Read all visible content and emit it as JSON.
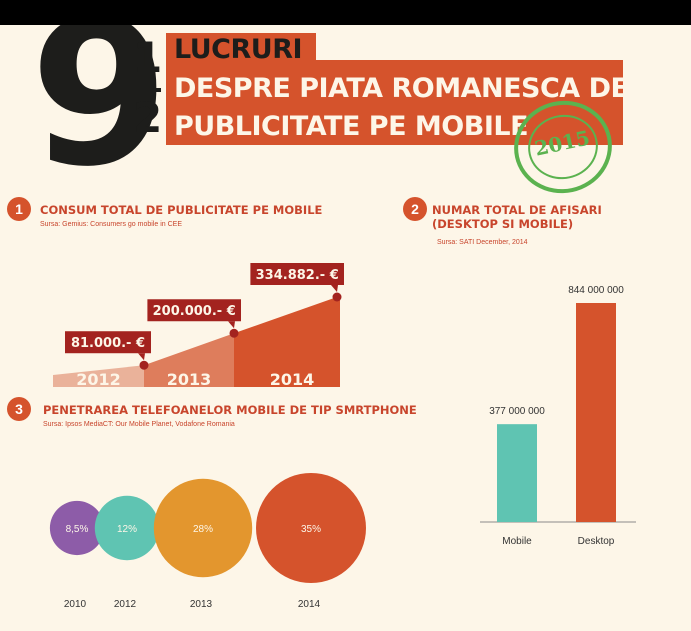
{
  "header": {
    "nine": "9",
    "frac_top": "1",
    "frac_bottom": "2",
    "line1": "LUCRURI",
    "line2": "DESPRE PIATA ROMANESCA DE",
    "line3": "PUBLICITATE PE MOBILE",
    "stamp": "2015"
  },
  "sections": [
    {
      "number": "1",
      "title": "CONSUM TOTAL DE PUBLICITATE PE MOBILE",
      "source": "Sursa: Gemius: Consumers go mobile in CEE"
    },
    {
      "number": "2",
      "title_line1": "NUMAR TOTAL DE AFISARI",
      "title_line2": "(DESKTOP SI MOBILE)",
      "source": "Sursa: SATI December, 2014"
    },
    {
      "number": "3",
      "title": "PENETRAREA TELEFOANELOR MOBILE DE TIP SMRTPHONE",
      "source": "Sursa: Ipsos MediaCT: Our Mobile Planet, Vodafone Romania"
    }
  ],
  "colors": {
    "accent": "#d5532c",
    "dark": "#1d1d1b",
    "teal": "#5fc4b2",
    "purple": "#8d5ca8",
    "orange": "#e3962e",
    "stamp_green": "#5bb24f",
    "label_red": "#a3231f"
  },
  "chart_data": [
    {
      "type": "area",
      "categories": [
        "2012",
        "2013",
        "2014"
      ],
      "values": [
        81000,
        200000,
        334882
      ],
      "value_labels": [
        "81.000.- €",
        "200.000.- €",
        "334.882.- €"
      ],
      "fill_colors": [
        "#eab29a",
        "#de7d5c",
        "#d5532c"
      ]
    },
    {
      "type": "bar",
      "categories": [
        "Mobile",
        "Desktop"
      ],
      "values": [
        377000000,
        844000000
      ],
      "value_labels": [
        "377 000 000",
        "844 000 000"
      ],
      "colors": [
        "#5fc4b2",
        "#d5532c"
      ]
    },
    {
      "type": "bubble",
      "categories": [
        "2010",
        "2012",
        "2013",
        "2014"
      ],
      "values": [
        8.5,
        12,
        28,
        35
      ],
      "value_labels": [
        "8,5%",
        "12%",
        "28%",
        "35%"
      ],
      "colors": [
        "#8d5ca8",
        "#5fc4b2",
        "#e3962e",
        "#d5532c"
      ]
    }
  ]
}
